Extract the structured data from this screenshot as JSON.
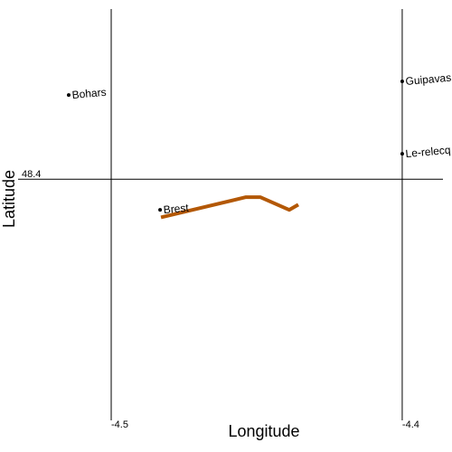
{
  "chart_data": {
    "type": "scatter",
    "x_label": "Longitude",
    "y_label": "Latitude",
    "xlim": [
      -4.532,
      -4.386
    ],
    "ylim": [
      48.345,
      48.4388
    ],
    "xticks": [
      -4.5,
      -4.4
    ],
    "yticks": [
      48.4
    ],
    "grid": true,
    "point_color": "#000000",
    "points": {
      "names": [
        "Bohars",
        "Guipavas",
        "Le-relecq",
        "Brest"
      ],
      "x": [
        -4.5146,
        -4.4,
        -4.4,
        -4.4832
      ],
      "y": [
        48.4192,
        48.4223,
        48.4058,
        48.393
      ]
    },
    "lines": [
      {
        "color": "#b35806",
        "x": [
          -4.4829,
          -4.4537,
          -4.4488,
          -4.4388,
          -4.4357
        ],
        "y": [
          48.3913,
          48.3959,
          48.3959,
          48.393,
          48.3942
        ]
      }
    ]
  }
}
